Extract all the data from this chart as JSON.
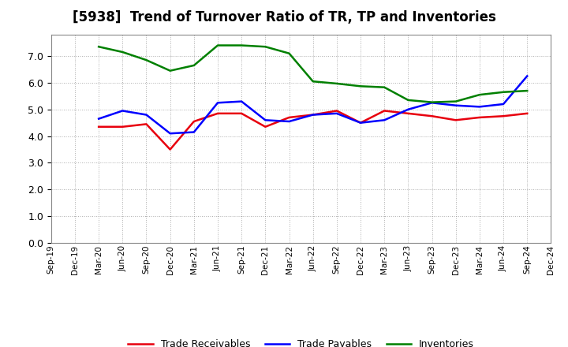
{
  "title": "[5938]  Trend of Turnover Ratio of TR, TP and Inventories",
  "x_labels": [
    "Sep-19",
    "Dec-19",
    "Mar-20",
    "Jun-20",
    "Sep-20",
    "Dec-20",
    "Mar-21",
    "Jun-21",
    "Sep-21",
    "Dec-21",
    "Mar-22",
    "Jun-22",
    "Sep-22",
    "Dec-22",
    "Mar-23",
    "Jun-23",
    "Sep-23",
    "Dec-23",
    "Mar-24",
    "Jun-24",
    "Sep-24",
    "Dec-24"
  ],
  "trade_receivables": [
    null,
    null,
    4.35,
    4.35,
    4.45,
    3.5,
    4.55,
    4.85,
    4.85,
    4.35,
    4.7,
    4.8,
    4.95,
    4.5,
    4.95,
    4.85,
    4.75,
    4.6,
    4.7,
    4.75,
    4.85,
    null
  ],
  "trade_payables": [
    null,
    null,
    4.65,
    4.95,
    4.8,
    4.1,
    4.15,
    5.25,
    5.3,
    4.6,
    4.55,
    4.8,
    4.85,
    4.5,
    4.6,
    5.0,
    5.25,
    5.15,
    5.1,
    5.2,
    6.25,
    null
  ],
  "inventories": [
    null,
    null,
    7.35,
    7.15,
    6.85,
    6.45,
    6.65,
    7.4,
    7.4,
    7.35,
    7.1,
    6.05,
    5.97,
    5.87,
    5.83,
    5.35,
    5.27,
    5.3,
    5.55,
    5.65,
    5.7,
    null
  ],
  "trade_receivables_color": "#e8000e",
  "trade_payables_color": "#0000ff",
  "inventories_color": "#008000",
  "ylim": [
    0.0,
    7.8
  ],
  "yticks": [
    0.0,
    1.0,
    2.0,
    3.0,
    4.0,
    5.0,
    6.0,
    7.0
  ],
  "background_color": "#ffffff",
  "plot_bg_color": "#ffffff",
  "grid_color": "#aaaaaa",
  "title_fontsize": 12,
  "legend_labels": [
    "Trade Receivables",
    "Trade Payables",
    "Inventories"
  ]
}
